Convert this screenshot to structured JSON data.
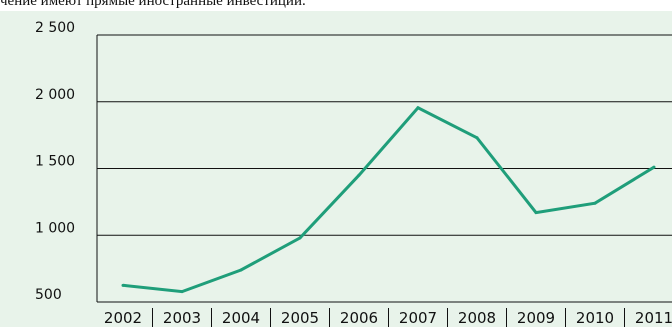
{
  "header": {
    "caption": "чение имеют прямые иностранные инвестиции."
  },
  "chart_data": {
    "type": "line",
    "title": "",
    "xlabel": "",
    "ylabel": "",
    "x": [
      "2002",
      "2003",
      "2004",
      "2005",
      "2006",
      "2007",
      "2008",
      "2009",
      "2010",
      "2011"
    ],
    "series": [
      {
        "values": [
          625,
          578,
          740,
          980,
          1450,
          1955,
          1730,
          1170,
          1240,
          1510
        ]
      }
    ],
    "ylim": [
      500,
      2500
    ],
    "yticks": [
      500,
      1000,
      1500,
      2000,
      2500
    ],
    "ytick_labels": [
      "500",
      "1 000",
      "1 500",
      "2 000",
      "2 500"
    ],
    "grid": true,
    "legend": "none",
    "colors": {
      "line": "#1f9e7a",
      "grid": "#111111",
      "background": "#e8f3ea"
    }
  }
}
